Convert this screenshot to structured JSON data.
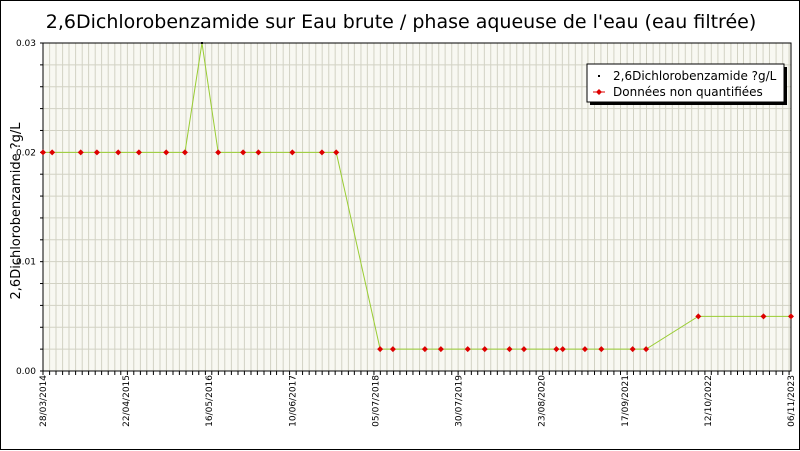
{
  "chart_data": {
    "type": "line",
    "title": "2,6Dichlorobenzamide sur Eau brute / phase aqueuse de l'eau (eau filtrée)",
    "ylabel": "2,6Dichlorobenzamide ?g/L",
    "xlabel": "",
    "ylim": [
      0,
      0.03
    ],
    "y_ticks": [
      "0.00",
      "0.01",
      "0.02",
      "0.03"
    ],
    "x_ticks": [
      "28/03/2014",
      "22/04/2015",
      "16/05/2016",
      "10/06/2017",
      "05/07/2018",
      "30/07/2019",
      "23/08/2020",
      "17/09/2021",
      "12/10/2022",
      "06/11/2023"
    ],
    "grid": true,
    "legend_position": "top-right",
    "colors": {
      "line": "#99cc33",
      "quantified_marker": "#000000",
      "non_quantified_marker": "#dd0000",
      "grid": "#d2d2c4",
      "plot_background": "#f8f8f2"
    },
    "series": [
      {
        "name": "2,6Dichlorobenzamide ?g/L",
        "x": [
          "2014-03-28",
          "2014-05-10",
          "2014-09-21",
          "2014-12-06",
          "2015-03-16",
          "2015-06-21",
          "2015-10-27",
          "2016-01-23",
          "2016-04-12",
          "2016-06-27",
          "2016-10-22",
          "2017-01-02",
          "2017-06-10",
          "2017-10-27",
          "2018-01-02",
          "2018-07-27",
          "2018-09-25",
          "2019-02-22",
          "2019-05-08",
          "2019-09-11",
          "2019-11-30",
          "2020-03-25",
          "2020-06-01",
          "2020-10-31",
          "2020-11-30",
          "2021-03-14",
          "2021-05-30",
          "2021-10-24",
          "2021-12-26",
          "2022-08-28",
          "2023-06-30",
          "2023-11-06"
        ],
        "y": [
          0.02,
          0.02,
          0.02,
          0.02,
          0.02,
          0.02,
          0.02,
          0.02,
          0.03,
          0.02,
          0.02,
          0.02,
          0.02,
          0.02,
          0.02,
          0.002,
          0.002,
          0.002,
          0.002,
          0.002,
          0.002,
          0.002,
          0.002,
          0.002,
          0.002,
          0.002,
          0.002,
          0.002,
          0.002,
          0.005,
          0.005,
          0.005
        ],
        "quantified": [
          false,
          false,
          false,
          false,
          false,
          false,
          false,
          false,
          true,
          false,
          false,
          false,
          false,
          false,
          false,
          false,
          false,
          false,
          false,
          false,
          false,
          false,
          false,
          false,
          false,
          false,
          false,
          false,
          false,
          false,
          false,
          false
        ]
      }
    ],
    "legend": [
      {
        "label": "2,6Dichlorobenzamide ?g/L",
        "marker": "quantified"
      },
      {
        "label": "Données non quantifiées",
        "marker": "non_quantified"
      }
    ]
  }
}
